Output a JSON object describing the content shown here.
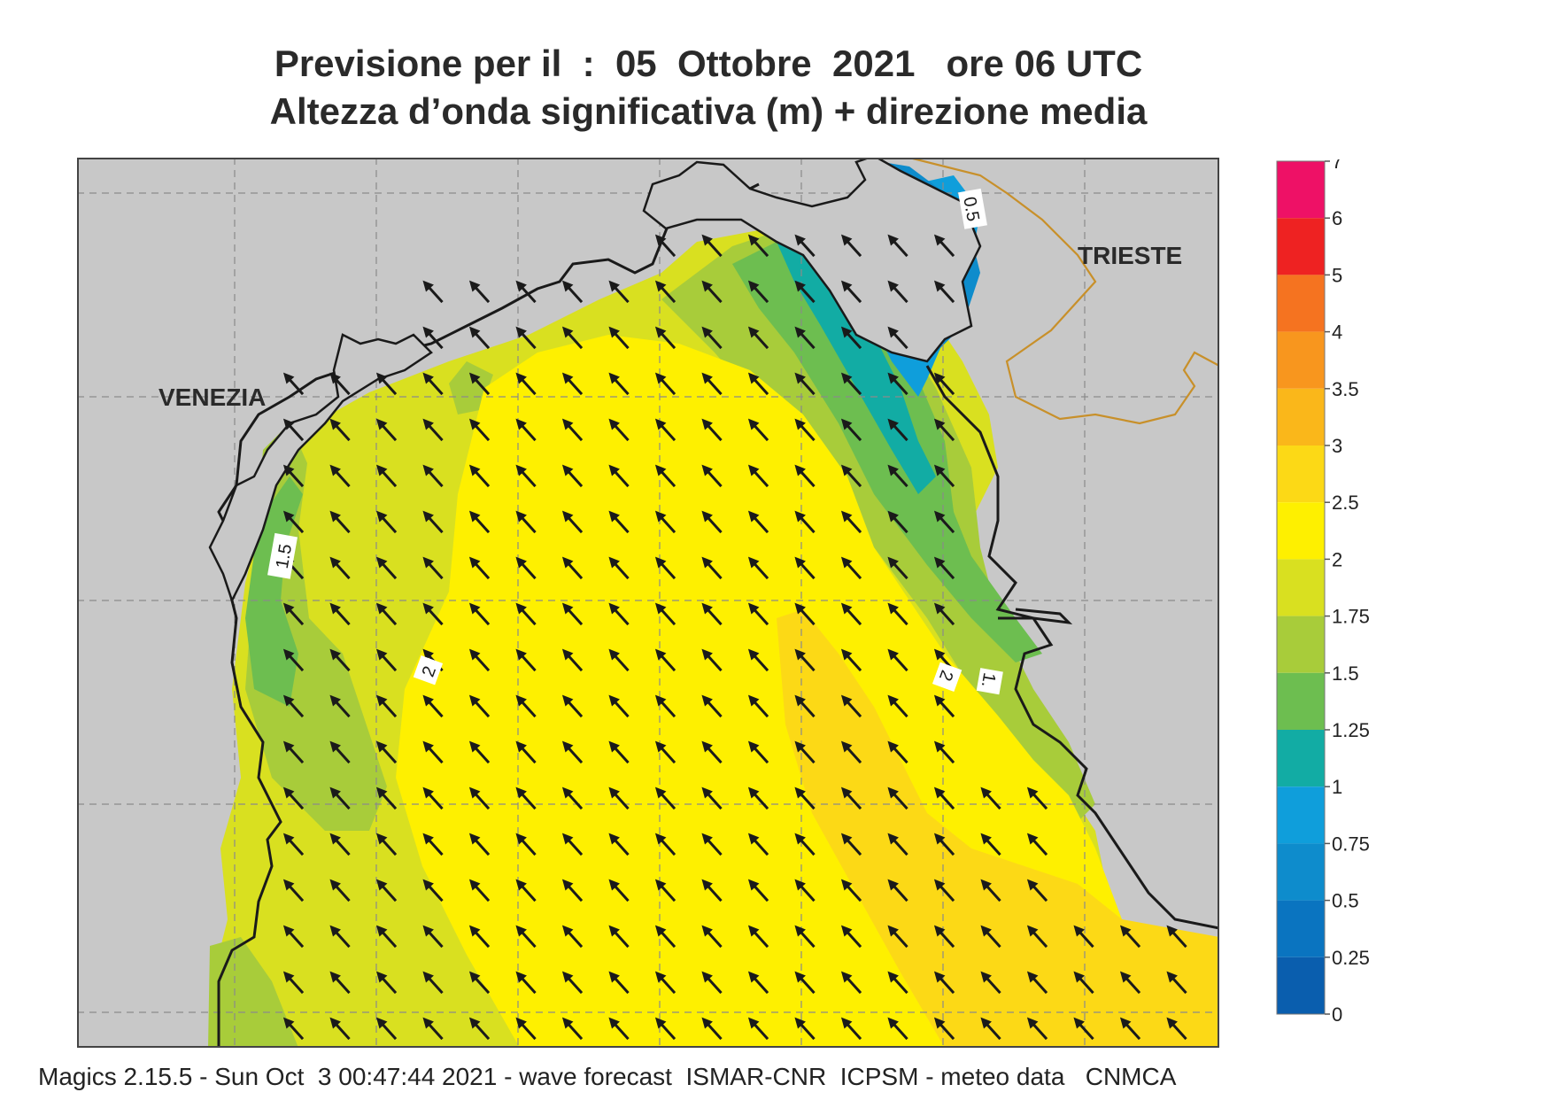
{
  "title_line1": "Previsione per il  :  05  Ottobre  2021   ore 06 UTC",
  "title_line2": "Altezza d’onda significativa (m) + direzione media",
  "footer": "Magics 2.15.5 - Sun Oct  3 00:47:44 2021 - wave forecast  ISMAR-CNR  ICPSM - meteo data   CNMCA",
  "map": {
    "place_labels": [
      "VENEZIA",
      "TRIESTE"
    ],
    "contour_labels": [
      "0.5",
      "1.5",
      "2",
      "2",
      "1."
    ],
    "land_color": "#c8c8c8",
    "coast_color": "#1a1a1a",
    "border_color": "#c8902a",
    "arrow_color": "#1a1a1a",
    "arrow_direction": "towards north-west"
  },
  "legend": {
    "ticks": [
      "7",
      "6",
      "5",
      "4",
      "3.5",
      "3",
      "2.5",
      "2",
      "1.75",
      "1.5",
      "1.25",
      "1",
      "0.75",
      "0.5",
      "0.25",
      "0"
    ],
    "colors": [
      "#ee1166",
      "#ee2222",
      "#f57320",
      "#f8961e",
      "#fab71a",
      "#fcd916",
      "#fef000",
      "#d9e020",
      "#a8cc3a",
      "#6dbe50",
      "#12aca4",
      "#0f9edb",
      "#0e8ccc",
      "#0a74c0",
      "#0a5eae"
    ]
  }
}
